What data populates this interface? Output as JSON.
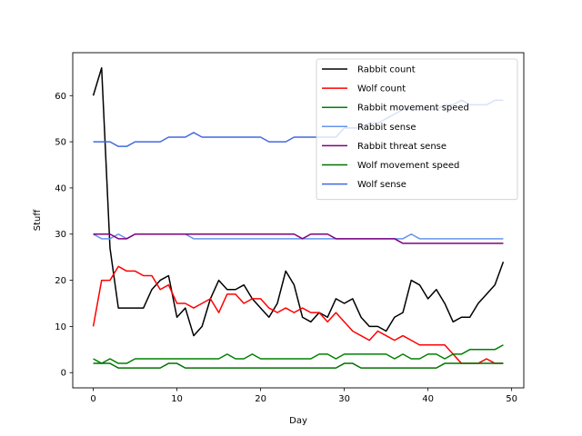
{
  "chart_data": {
    "type": "line",
    "xlabel": "Day",
    "ylabel": "Stuff",
    "xlim": [
      -2.45,
      51.45
    ],
    "ylim": [
      -3.3,
      69.3
    ],
    "x_ticks": [
      0,
      10,
      20,
      30,
      40,
      50
    ],
    "y_ticks": [
      0,
      10,
      20,
      30,
      40,
      50,
      60
    ],
    "grid": false,
    "legend_position": "upper-right",
    "series": [
      {
        "name": "Rabbit count",
        "color": "#000000",
        "values": [
          60,
          66,
          27,
          14,
          14,
          14,
          14,
          18,
          20,
          21,
          12,
          14,
          8,
          10,
          16,
          20,
          18,
          18,
          19,
          16,
          14,
          12,
          15,
          22,
          19,
          12,
          11,
          13,
          12,
          16,
          15,
          16,
          12,
          10,
          10,
          9,
          12,
          13,
          20,
          19,
          16,
          18,
          15,
          11,
          12,
          12,
          15,
          17,
          19,
          24
        ]
      },
      {
        "name": "Wolf count",
        "color": "#ff0000",
        "values": [
          10,
          20,
          20,
          23,
          22,
          22,
          21,
          21,
          18,
          19,
          15,
          15,
          14,
          15,
          16,
          13,
          17,
          17,
          15,
          16,
          16,
          14,
          13,
          14,
          13,
          14,
          13,
          13,
          11,
          13,
          11,
          9,
          8,
          7,
          9,
          8,
          7,
          8,
          7,
          6,
          6,
          6,
          6,
          4,
          2,
          2,
          2,
          3,
          2,
          2
        ]
      },
      {
        "name": "Rabbit movement speed",
        "color": "#008000",
        "values": [
          3,
          2,
          3,
          2,
          2,
          3,
          3,
          3,
          3,
          3,
          3,
          3,
          3,
          3,
          3,
          3,
          4,
          3,
          3,
          4,
          3,
          3,
          3,
          3,
          3,
          3,
          3,
          4,
          4,
          3,
          4,
          4,
          4,
          4,
          4,
          4,
          3,
          4,
          3,
          3,
          4,
          4,
          3,
          4,
          4,
          5,
          5,
          5,
          5,
          6
        ]
      },
      {
        "name": "Rabbit sense",
        "color": "#6495ed",
        "values": [
          30,
          29,
          29,
          30,
          29,
          30,
          30,
          30,
          30,
          30,
          30,
          30,
          29,
          29,
          29,
          29,
          29,
          29,
          29,
          29,
          29,
          29,
          29,
          29,
          29,
          29,
          29,
          29,
          29,
          29,
          29,
          29,
          29,
          29,
          29,
          29,
          29,
          29,
          30,
          29,
          29,
          29,
          29,
          29,
          29,
          29,
          29,
          29,
          29,
          29
        ]
      },
      {
        "name": "Rabbit threat sense",
        "color": "#800080",
        "values": [
          30,
          30,
          30,
          29,
          29,
          30,
          30,
          30,
          30,
          30,
          30,
          30,
          30,
          30,
          30,
          30,
          30,
          30,
          30,
          30,
          30,
          30,
          30,
          30,
          30,
          29,
          30,
          30,
          30,
          29,
          29,
          29,
          29,
          29,
          29,
          29,
          29,
          28,
          28,
          28,
          28,
          28,
          28,
          28,
          28,
          28,
          28,
          28,
          28,
          28
        ]
      },
      {
        "name": "Wolf movement speed",
        "color": "#007000",
        "values": [
          2,
          2,
          2,
          1,
          1,
          1,
          1,
          1,
          1,
          2,
          2,
          1,
          1,
          1,
          1,
          1,
          1,
          1,
          1,
          1,
          1,
          1,
          1,
          1,
          1,
          1,
          1,
          1,
          1,
          1,
          2,
          2,
          1,
          1,
          1,
          1,
          1,
          1,
          1,
          1,
          1,
          1,
          2,
          2,
          2,
          2,
          2,
          2,
          2,
          2
        ]
      },
      {
        "name": "Wolf sense",
        "color": "#4169e1",
        "values": [
          50,
          50,
          50,
          49,
          49,
          50,
          50,
          50,
          50,
          51,
          51,
          51,
          52,
          51,
          51,
          51,
          51,
          51,
          51,
          51,
          51,
          50,
          50,
          50,
          51,
          51,
          51,
          51,
          51,
          51,
          53,
          53,
          53,
          54,
          54,
          55,
          56,
          57,
          57,
          57,
          57,
          57,
          58,
          58,
          59,
          58,
          58,
          58,
          59,
          59
        ]
      }
    ]
  }
}
